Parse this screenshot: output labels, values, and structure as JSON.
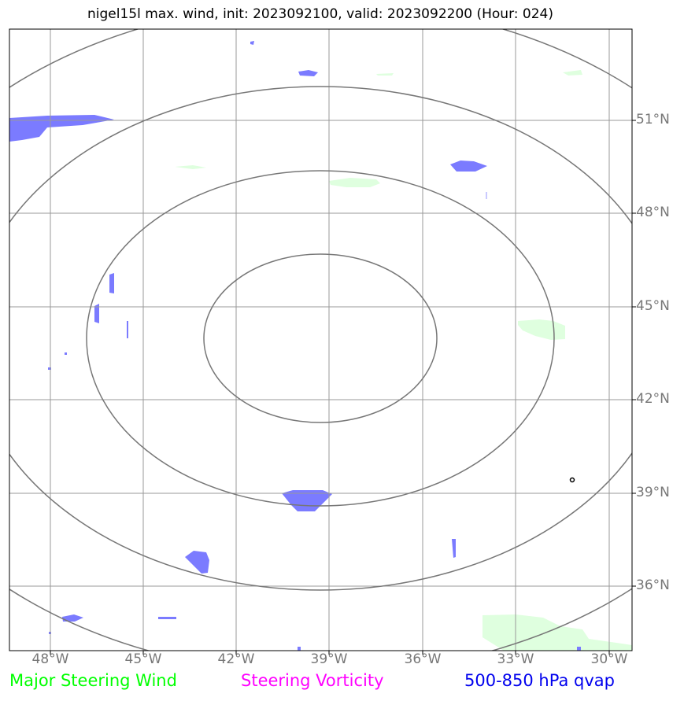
{
  "title": "nigel15l max. wind, init: 2023092100, valid: 2023092200 (Hour: 024)",
  "x_ticks": [
    "48°W",
    "45°W",
    "42°W",
    "39°W",
    "36°W",
    "33°W",
    "30°W"
  ],
  "y_ticks": [
    "51°N",
    "48°N",
    "45°N",
    "42°N",
    "39°N",
    "36°N"
  ],
  "legend": [
    {
      "label": "Major Steering Wind",
      "color": "#00ff00"
    },
    {
      "label": "Steering Vorticity",
      "color": "#ff00ff"
    },
    {
      "label": "500-850 hPa qvap",
      "color": "#0000ee"
    }
  ],
  "colors": {
    "qvap_fill": "#7b7bff",
    "wind_fill": "#dfffdf",
    "range_rings": "#777777",
    "gridlines": "#999999"
  },
  "map_extent": {
    "lon_min": "49.3°W",
    "lon_max": "29.3°W",
    "lat_min": "33.9°N",
    "lat_max": "53.9°N"
  }
}
